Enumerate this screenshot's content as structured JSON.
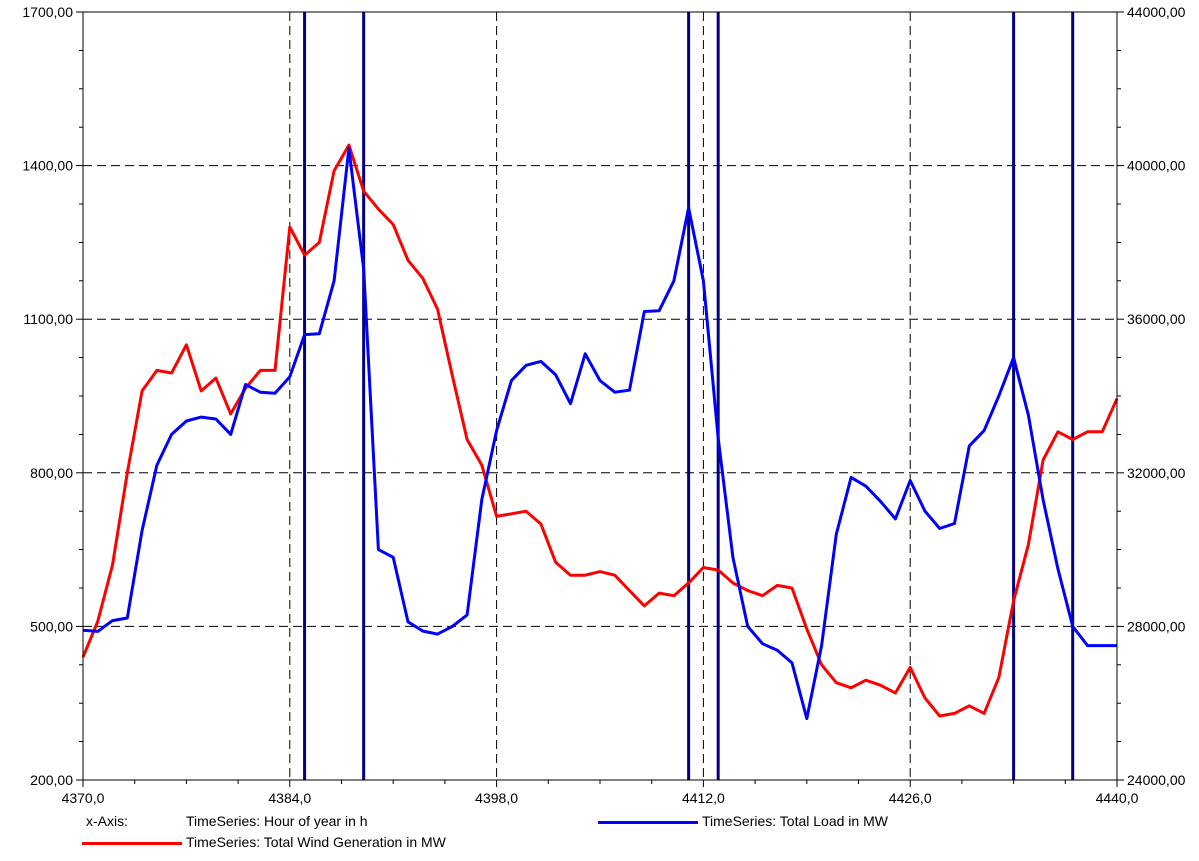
{
  "chart_data": {
    "type": "line",
    "x_ticks": [
      "4370,0",
      "4384,0",
      "4398,0",
      "4412,0",
      "4426,0",
      "4440,0"
    ],
    "xlim": [
      4370,
      4440
    ],
    "y_left_ticks": [
      "200,00",
      "500,00",
      "800,00",
      "1100,00",
      "1400,00",
      "1700,00"
    ],
    "ylim_left": [
      200,
      1700
    ],
    "y_right_ticks": [
      "24000,00",
      "28000,00",
      "32000,00",
      "36000,00",
      "40000,00",
      "44000,00"
    ],
    "ylim_right": [
      24000,
      44000
    ],
    "grid": true,
    "x": [
      4370,
      4371,
      4372,
      4373,
      4374,
      4375,
      4376,
      4377,
      4378,
      4379,
      4380,
      4381,
      4382,
      4383,
      4384,
      4385,
      4386,
      4387,
      4388,
      4389,
      4390,
      4391,
      4392,
      4393,
      4394,
      4395,
      4396,
      4397,
      4398,
      4399,
      4400,
      4401,
      4402,
      4403,
      4404,
      4405,
      4406,
      4407,
      4408,
      4409,
      4410,
      4411,
      4412,
      4413,
      4414,
      4415,
      4416,
      4417,
      4418,
      4419,
      4420,
      4421,
      4422,
      4423,
      4424,
      4425,
      4426,
      4427,
      4428,
      4429,
      4430,
      4431,
      4432,
      4433,
      4434,
      4435,
      4436,
      4437,
      4438,
      4439,
      4440
    ],
    "series": [
      {
        "name": "TimeSeries: Total Wind Generation in MW",
        "axis": "left",
        "color": "#ff0000",
        "values": [
          440,
          510,
          620,
          800,
          960,
          1000,
          995,
          1050,
          960,
          985,
          915,
          965,
          1000,
          1000,
          1280,
          1225,
          1250,
          1390,
          1440,
          1350,
          1315,
          1285,
          1215,
          1180,
          1120,
          990,
          865,
          815,
          715,
          720,
          725,
          700,
          625,
          600,
          600,
          607,
          600,
          570,
          540,
          565,
          560,
          585,
          615,
          610,
          585,
          570,
          560,
          580,
          575,
          495,
          425,
          390,
          380,
          395,
          385,
          370,
          420,
          360,
          325,
          330,
          345,
          330,
          400,
          550,
          660,
          825,
          880,
          865,
          880,
          880,
          945
        ]
      },
      {
        "name": "TimeSeries: Total Load in MW",
        "axis": "right",
        "color": "#0000ff",
        "values": [
          27900,
          27870,
          28150,
          28220,
          30500,
          32200,
          33000,
          33350,
          33450,
          33400,
          33000,
          34300,
          34100,
          34070,
          34500,
          35600,
          35620,
          37000,
          40450,
          37300,
          30000,
          29800,
          28120,
          27880,
          27800,
          28000,
          28300,
          31300,
          33100,
          34400,
          34800,
          34900,
          34550,
          33800,
          35100,
          34400,
          34100,
          34150,
          36200,
          36220,
          37000,
          38900,
          37000,
          32900,
          29800,
          28000,
          27550,
          27380,
          27050,
          25600,
          27500,
          30400,
          31880,
          31650,
          31250,
          30800,
          31800,
          31000,
          30550,
          30680,
          32700,
          33100,
          34000,
          35000,
          33500,
          31300,
          29500,
          28000,
          27500,
          27500,
          27500
        ]
      }
    ],
    "legend": {
      "xaxis_label": "x-Axis:",
      "xaxis_desc": "TimeSeries: Hour of year in h",
      "load_label": "TimeSeries: Total Load in MW",
      "wind_label": "TimeSeries: Total Wind Generation in MW"
    }
  },
  "colors": {
    "grid": "#000000",
    "markers": "#000080"
  },
  "vertical_markers_x": [
    4385,
    4389,
    4411,
    4413,
    4433,
    4437
  ]
}
